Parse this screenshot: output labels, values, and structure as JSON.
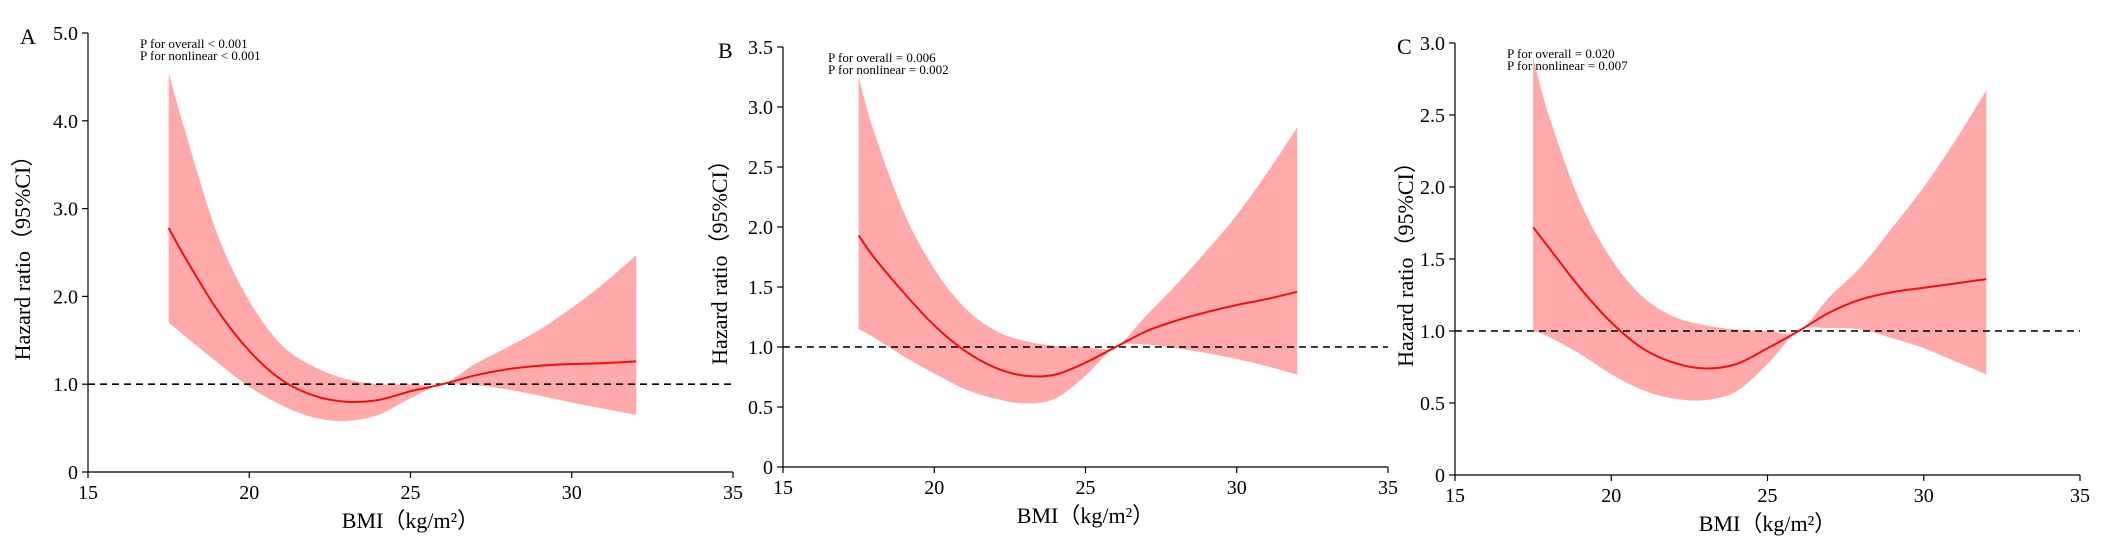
{
  "colors": {
    "curve": "#ee1111",
    "band": "#ffaaaa",
    "axis": "#000000",
    "reference": "#000000"
  },
  "chart_data": [
    {
      "type": "line",
      "panel": "A",
      "xlabel": "BMI（kg/m²）",
      "ylabel": "Hazard ratio（95%CI）",
      "annotations": [
        "P for overall < 0.001",
        "P for nonlinear < 0.001"
      ],
      "xlim": [
        15,
        35
      ],
      "ylim": [
        0,
        5
      ],
      "xticks": [
        {
          "v": 15,
          "label": "15"
        },
        {
          "v": 20,
          "label": "20"
        },
        {
          "v": 25,
          "label": "25"
        },
        {
          "v": 30,
          "label": "30"
        },
        {
          "v": 35,
          "label": "35"
        }
      ],
      "yticks": [
        {
          "v": 0,
          "label": "0"
        },
        {
          "v": 1,
          "label": "1.0"
        },
        {
          "v": 2,
          "label": "2.0"
        },
        {
          "v": 3,
          "label": "3.0"
        },
        {
          "v": 4,
          "label": "4.0"
        },
        {
          "v": 5,
          "label": "5.0"
        }
      ],
      "reference_y": 1.0,
      "x": [
        17.5,
        18,
        19,
        20,
        21,
        22,
        23,
        24,
        25,
        26,
        27,
        28,
        29,
        30,
        31,
        32
      ],
      "hr": [
        2.78,
        2.45,
        1.85,
        1.38,
        1.05,
        0.87,
        0.8,
        0.82,
        0.92,
        1.0,
        1.1,
        1.17,
        1.21,
        1.23,
        1.24,
        1.26
      ],
      "lower": [
        1.7,
        1.55,
        1.25,
        0.97,
        0.76,
        0.62,
        0.58,
        0.65,
        0.84,
        1.0,
        0.99,
        0.94,
        0.87,
        0.79,
        0.72,
        0.65
      ],
      "upper": [
        4.55,
        3.9,
        2.72,
        1.95,
        1.45,
        1.2,
        1.06,
        1.0,
        1.0,
        1.0,
        1.23,
        1.42,
        1.62,
        1.87,
        2.15,
        2.47
      ]
    },
    {
      "type": "line",
      "panel": "B",
      "xlabel": "BMI（kg/m²）",
      "ylabel": "Hazard ratio（95%CI）",
      "annotations": [
        "P for overall = 0.006",
        "P for nonlinear = 0.002"
      ],
      "xlim": [
        15,
        35
      ],
      "ylim": [
        0,
        3.5
      ],
      "xticks": [
        {
          "v": 15,
          "label": "15"
        },
        {
          "v": 20,
          "label": "20"
        },
        {
          "v": 25,
          "label": "25"
        },
        {
          "v": 30,
          "label": "30"
        },
        {
          "v": 35,
          "label": "35"
        }
      ],
      "yticks": [
        {
          "v": 0,
          "label": "0"
        },
        {
          "v": 0.5,
          "label": "0.5"
        },
        {
          "v": 1,
          "label": "1.0"
        },
        {
          "v": 1.5,
          "label": "1.5"
        },
        {
          "v": 2,
          "label": "2.0"
        },
        {
          "v": 2.5,
          "label": "2.5"
        },
        {
          "v": 3,
          "label": "3.0"
        },
        {
          "v": 3.5,
          "label": "3.5"
        }
      ],
      "reference_y": 1.0,
      "x": [
        17.5,
        18,
        19,
        20,
        21,
        22,
        23,
        24,
        25,
        26,
        27,
        28,
        29,
        30,
        31,
        32
      ],
      "hr": [
        1.93,
        1.75,
        1.45,
        1.18,
        0.97,
        0.83,
        0.76,
        0.77,
        0.87,
        1.0,
        1.13,
        1.22,
        1.29,
        1.35,
        1.4,
        1.46
      ],
      "lower": [
        1.15,
        1.08,
        0.92,
        0.78,
        0.65,
        0.57,
        0.53,
        0.57,
        0.76,
        1.0,
        1.02,
        0.99,
        0.95,
        0.9,
        0.84,
        0.77
      ],
      "upper": [
        3.25,
        2.8,
        2.12,
        1.65,
        1.33,
        1.14,
        1.05,
        1.01,
        1.0,
        1.0,
        1.26,
        1.52,
        1.8,
        2.1,
        2.45,
        2.83
      ]
    },
    {
      "type": "line",
      "panel": "C",
      "xlabel": "BMI（kg/m²）",
      "ylabel": "Hazard ratio（95%CI）",
      "annotations": [
        "P for overall = 0.020",
        "P for nonlinear = 0.007"
      ],
      "xlim": [
        15,
        35
      ],
      "ylim": [
        0,
        3
      ],
      "xticks": [
        {
          "v": 15,
          "label": "15"
        },
        {
          "v": 20,
          "label": "20"
        },
        {
          "v": 25,
          "label": "25"
        },
        {
          "v": 30,
          "label": "30"
        },
        {
          "v": 35,
          "label": "35"
        }
      ],
      "yticks": [
        {
          "v": 0,
          "label": "0"
        },
        {
          "v": 0.5,
          "label": "0.5"
        },
        {
          "v": 1,
          "label": "1.0"
        },
        {
          "v": 1.5,
          "label": "1.5"
        },
        {
          "v": 2,
          "label": "2.0"
        },
        {
          "v": 2.5,
          "label": "2.5"
        },
        {
          "v": 3,
          "label": "3.0"
        }
      ],
      "reference_y": 1.0,
      "x": [
        17.5,
        18,
        19,
        20,
        21,
        22,
        23,
        24,
        25,
        26,
        27,
        28,
        29,
        30,
        31,
        32
      ],
      "hr": [
        1.72,
        1.58,
        1.3,
        1.06,
        0.88,
        0.78,
        0.74,
        0.77,
        0.88,
        1.0,
        1.13,
        1.22,
        1.27,
        1.3,
        1.33,
        1.36
      ],
      "lower": [
        1.0,
        0.96,
        0.84,
        0.7,
        0.59,
        0.53,
        0.52,
        0.58,
        0.77,
        1.0,
        1.02,
        1.01,
        0.95,
        0.88,
        0.79,
        0.7
      ],
      "upper": [
        2.9,
        2.5,
        1.9,
        1.5,
        1.24,
        1.1,
        1.04,
        1.01,
        1.0,
        1.0,
        1.24,
        1.45,
        1.72,
        2.0,
        2.32,
        2.67
      ]
    }
  ]
}
